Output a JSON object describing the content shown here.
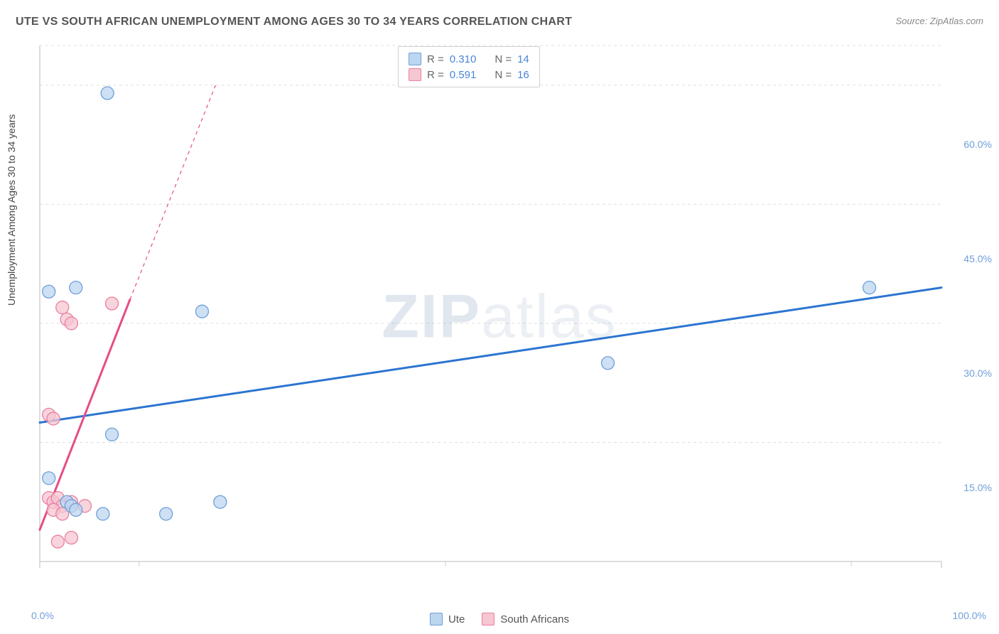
{
  "title": "UTE VS SOUTH AFRICAN UNEMPLOYMENT AMONG AGES 30 TO 34 YEARS CORRELATION CHART",
  "source": "Source: ZipAtlas.com",
  "ylabel": "Unemployment Among Ages 30 to 34 years",
  "watermark_bold": "ZIP",
  "watermark_light": "atlas",
  "chart": {
    "type": "scatter",
    "background_color": "#ffffff",
    "grid_color": "#e0e0e0",
    "axis_color": "#d0d0d0",
    "tick_label_color": "#6f9fd8",
    "title_fontsize": 16,
    "label_fontsize": 14,
    "xlim": [
      0.0,
      100.0
    ],
    "ylim": [
      0.0,
      65.0
    ],
    "x_ticks_major": [
      0.0,
      100.0
    ],
    "x_ticks_minor": [
      11.0,
      45.0,
      90.0
    ],
    "y_ticks": [
      15.0,
      30.0,
      45.0,
      60.0
    ],
    "y_tick_labels": [
      "15.0%",
      "30.0%",
      "45.0%",
      "60.0%"
    ],
    "x_tick_labels": {
      "0": "0.0%",
      "100": "100.0%"
    },
    "series": [
      {
        "name": "Ute",
        "marker_color_fill": "#bcd6f0",
        "marker_color_stroke": "#6f9fd8",
        "marker_radius": 9,
        "line_color": "#2b74d1",
        "line_width": 3,
        "regression": {
          "x1": 0.0,
          "y1": 17.5,
          "x2": 100.0,
          "y2": 34.5
        },
        "r": "0.310",
        "n": "14",
        "points": [
          [
            1.0,
            34.0
          ],
          [
            4.0,
            34.5
          ],
          [
            7.5,
            59.0
          ],
          [
            8.0,
            16.0
          ],
          [
            18.0,
            31.5
          ],
          [
            63.0,
            25.0
          ],
          [
            92.0,
            34.5
          ],
          [
            1.0,
            10.5
          ],
          [
            3.0,
            7.5
          ],
          [
            3.5,
            7.0
          ],
          [
            4.0,
            6.5
          ],
          [
            7.0,
            6.0
          ],
          [
            14.0,
            6.0
          ],
          [
            20.0,
            7.5
          ]
        ]
      },
      {
        "name": "South Africans",
        "marker_color_fill": "#f6c6d2",
        "marker_color_stroke": "#e97fa0",
        "marker_radius": 9,
        "line_color": "#e64d84",
        "line_width": 3,
        "regression": {
          "x1": 0.0,
          "y1": 4.0,
          "x2": 10.0,
          "y2": 33.0
        },
        "regression_dashed_to": {
          "x": 19.5,
          "y": 60.0
        },
        "r": "0.591",
        "n": "16",
        "points": [
          [
            2.5,
            32.0
          ],
          [
            3.0,
            30.5
          ],
          [
            3.5,
            30.0
          ],
          [
            8.0,
            32.5
          ],
          [
            1.0,
            18.5
          ],
          [
            1.5,
            18.0
          ],
          [
            1.0,
            8.0
          ],
          [
            1.5,
            7.5
          ],
          [
            2.0,
            8.0
          ],
          [
            2.5,
            7.0
          ],
          [
            3.5,
            7.5
          ],
          [
            5.0,
            7.0
          ],
          [
            2.0,
            2.5
          ],
          [
            3.5,
            3.0
          ],
          [
            1.5,
            6.5
          ],
          [
            2.5,
            6.0
          ]
        ]
      }
    ]
  },
  "legend_top": [
    {
      "swatch_fill": "#bcd6f0",
      "swatch_stroke": "#6f9fd8",
      "r_label": "R =",
      "r": "0.310",
      "n_label": "N =",
      "n": "14"
    },
    {
      "swatch_fill": "#f6c6d2",
      "swatch_stroke": "#e97fa0",
      "r_label": "R =",
      "r": "0.591",
      "n_label": "N =",
      "n": "16"
    }
  ],
  "legend_bottom": [
    {
      "swatch_fill": "#bcd6f0",
      "swatch_stroke": "#6f9fd8",
      "label": "Ute"
    },
    {
      "swatch_fill": "#f6c6d2",
      "swatch_stroke": "#e97fa0",
      "label": "South Africans"
    }
  ]
}
